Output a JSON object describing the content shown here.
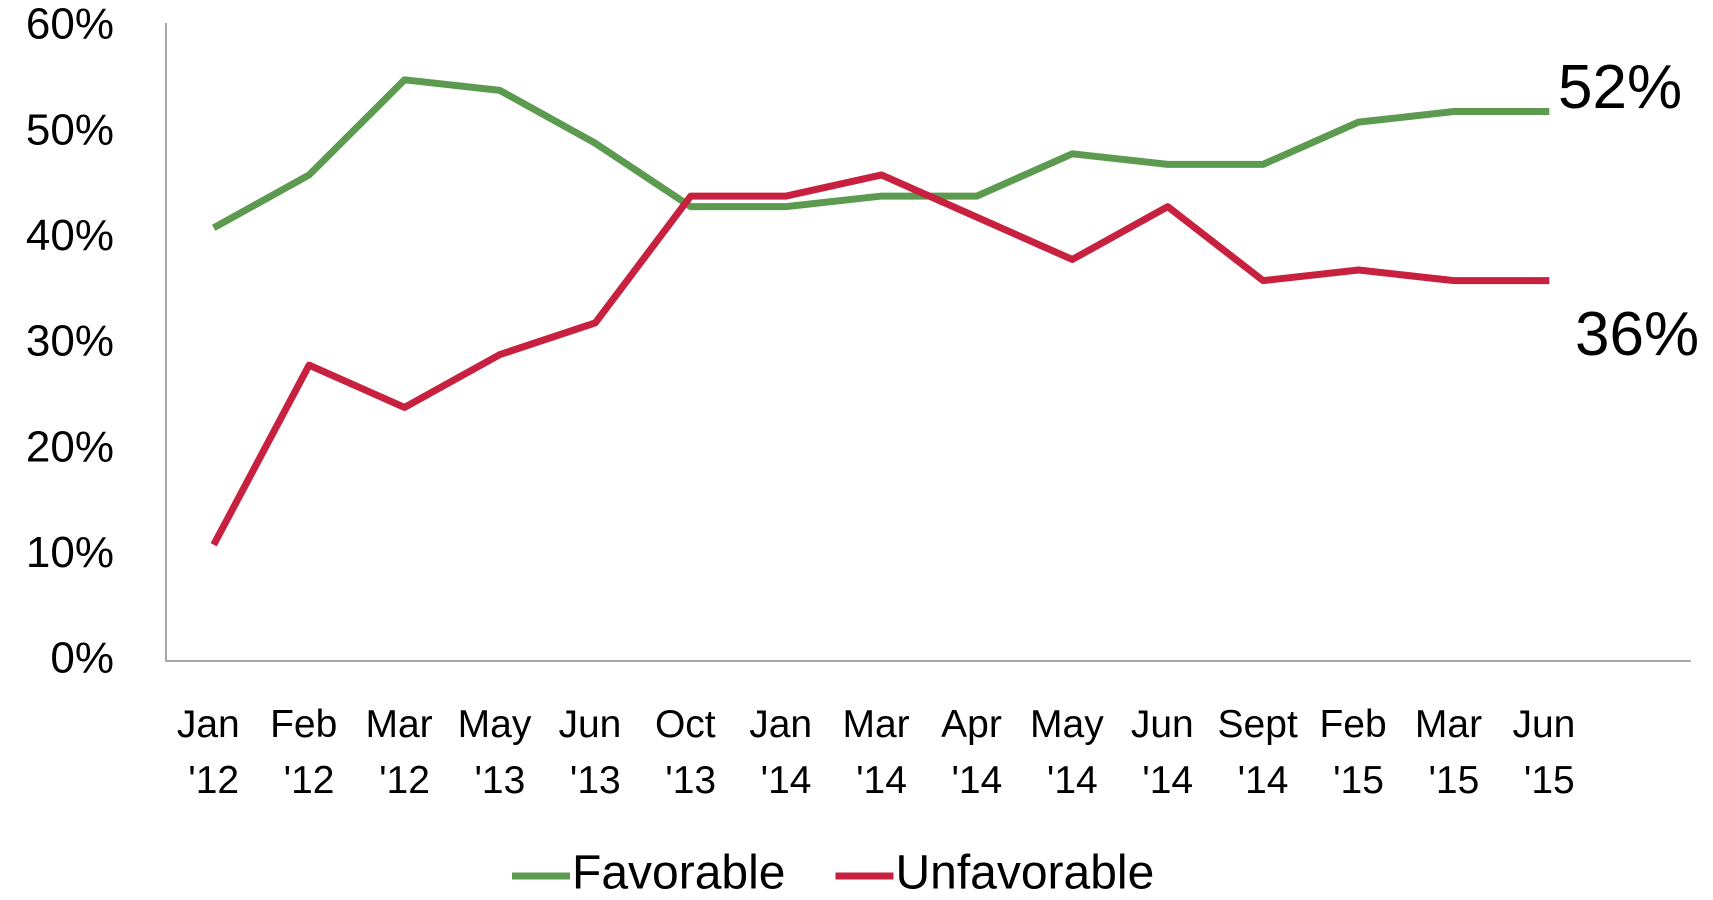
{
  "chart_data": {
    "type": "line",
    "categories": [
      "Jan '12",
      "Feb '12",
      "Mar '12",
      "May '13",
      "Jun '13",
      "Oct '13",
      "Jan '14",
      "Mar '14",
      "Apr '14",
      "May '14",
      "Jun '14",
      "Sept '14",
      "Feb '15",
      "Mar '15",
      "Jun '15"
    ],
    "series": [
      {
        "name": "Favorable",
        "color": "#5b9a4f",
        "values": [
          41,
          46,
          55,
          54,
          49,
          43,
          43,
          44,
          44,
          48,
          47,
          47,
          51,
          52,
          52
        ]
      },
      {
        "name": "Unfavorable",
        "color": "#c8213f",
        "values": [
          11,
          28,
          24,
          29,
          32,
          44,
          44,
          46,
          42,
          38,
          43,
          36,
          37,
          36,
          36
        ]
      }
    ],
    "annotations": [
      {
        "text": "52%",
        "series": 0
      },
      {
        "text": "36%",
        "series": 1
      }
    ],
    "ylim": [
      0,
      60
    ],
    "yticks": [
      {
        "value": 0,
        "label": "0%"
      },
      {
        "value": 10,
        "label": "10%"
      },
      {
        "value": 20,
        "label": "20%"
      },
      {
        "value": 30,
        "label": "30%"
      },
      {
        "value": 40,
        "label": "40%"
      },
      {
        "value": 50,
        "label": "50%"
      },
      {
        "value": 60,
        "label": "60%"
      }
    ],
    "grid": false,
    "legend": "bottom"
  }
}
